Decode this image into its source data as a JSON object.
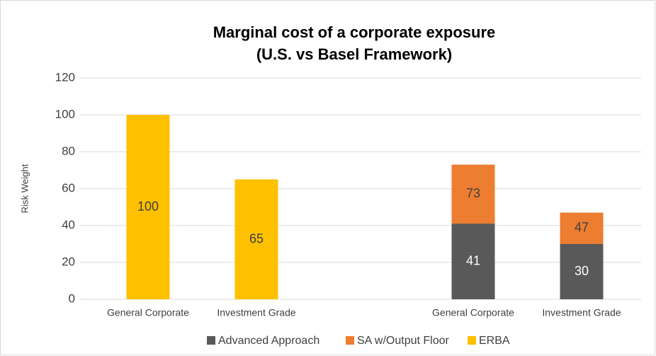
{
  "chart_data": {
    "type": "bar",
    "overlap": true,
    "title": "Marginal cost of a corporate exposure",
    "subtitle": "(U.S. vs Basel Framework)",
    "y_label": "Risk Weight",
    "categories": [
      "General Corporate",
      "Investment Grade",
      null,
      "General Corporate",
      "Investment Grade"
    ],
    "series": [
      {
        "name": "Advanced Approach",
        "color": "#595959",
        "values": [
          null,
          null,
          null,
          41,
          30
        ]
      },
      {
        "name": "SA w/Output Floor",
        "color": "#ED7D31",
        "values": [
          null,
          null,
          null,
          73,
          47
        ]
      },
      {
        "name": "ERBA",
        "color": "#FFC000",
        "values": [
          100,
          65,
          null,
          null,
          null
        ]
      }
    ],
    "ylim": [
      0,
      120
    ],
    "yticks": [
      0,
      20,
      40,
      60,
      80,
      100,
      120
    ],
    "grid": true,
    "legend": "bottom"
  }
}
